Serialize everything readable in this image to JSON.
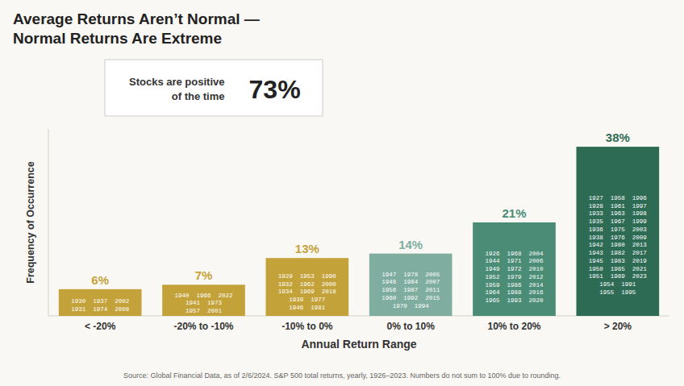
{
  "chart_data": {
    "type": "bar",
    "title": "Average Returns Aren’t Normal —\nNormal Returns Are Extreme",
    "xlabel": "Annual Return Range",
    "ylabel": "Frequency of Occurrence",
    "source": "Source: Global Financial Data, as of 2/6/2024. S&P 500 total returns, yearly, 1926–2023. Numbers do not sum to 100% due to rounding.",
    "annotations": [
      "Stocks are positive",
      "of the time",
      "73%"
    ],
    "categories": [
      "< -20%",
      "-20% to -10%",
      "-10% to 0%",
      "0% to 10%",
      "10% to 20%",
      "> 20%"
    ],
    "values": [
      6,
      7,
      13,
      14,
      21,
      38
    ],
    "value_labels": [
      "6%",
      "7%",
      "13%",
      "14%",
      "21%",
      "38%"
    ],
    "bar_texts": [
      "1930  1937  2002\n1931  1974  2008",
      "1940  1966  2022\n1941  1973\n1957  2001",
      "1929  1953  1990\n1932  1962  2000\n1934  1969  2018\n1939  1977\n1946  1981",
      "1947  1978  2005\n1948  1984  2007\n1956  1987  2011\n1960  1992  2015\n1970  1994",
      "1926  1968  2004\n1944  1971  2006\n1949  1972  2010\n1952  1979  2012\n1959  1986  2014\n1964  1988  2016\n1965  1993  2020",
      "1927  1958  1996\n1928  1961  1997\n1933  1963  1998\n1935  1967  1999\n1936  1975  2003\n1938  1976  2009\n1942  1980  2013\n1943  1982  2017\n1945  1983  2019\n1950  1985  2021\n1951  1989  2023\n1954  1991\n1955  1995"
    ],
    "colors": [
      "#C4A23A",
      "#C4A23A",
      "#C4A23A",
      "#7FADA0",
      "#4A8C75",
      "#2D6B55"
    ],
    "ylim": [
      0,
      42
    ],
    "data_labels": true,
    "tick_labels": "x",
    "grid": false
  }
}
